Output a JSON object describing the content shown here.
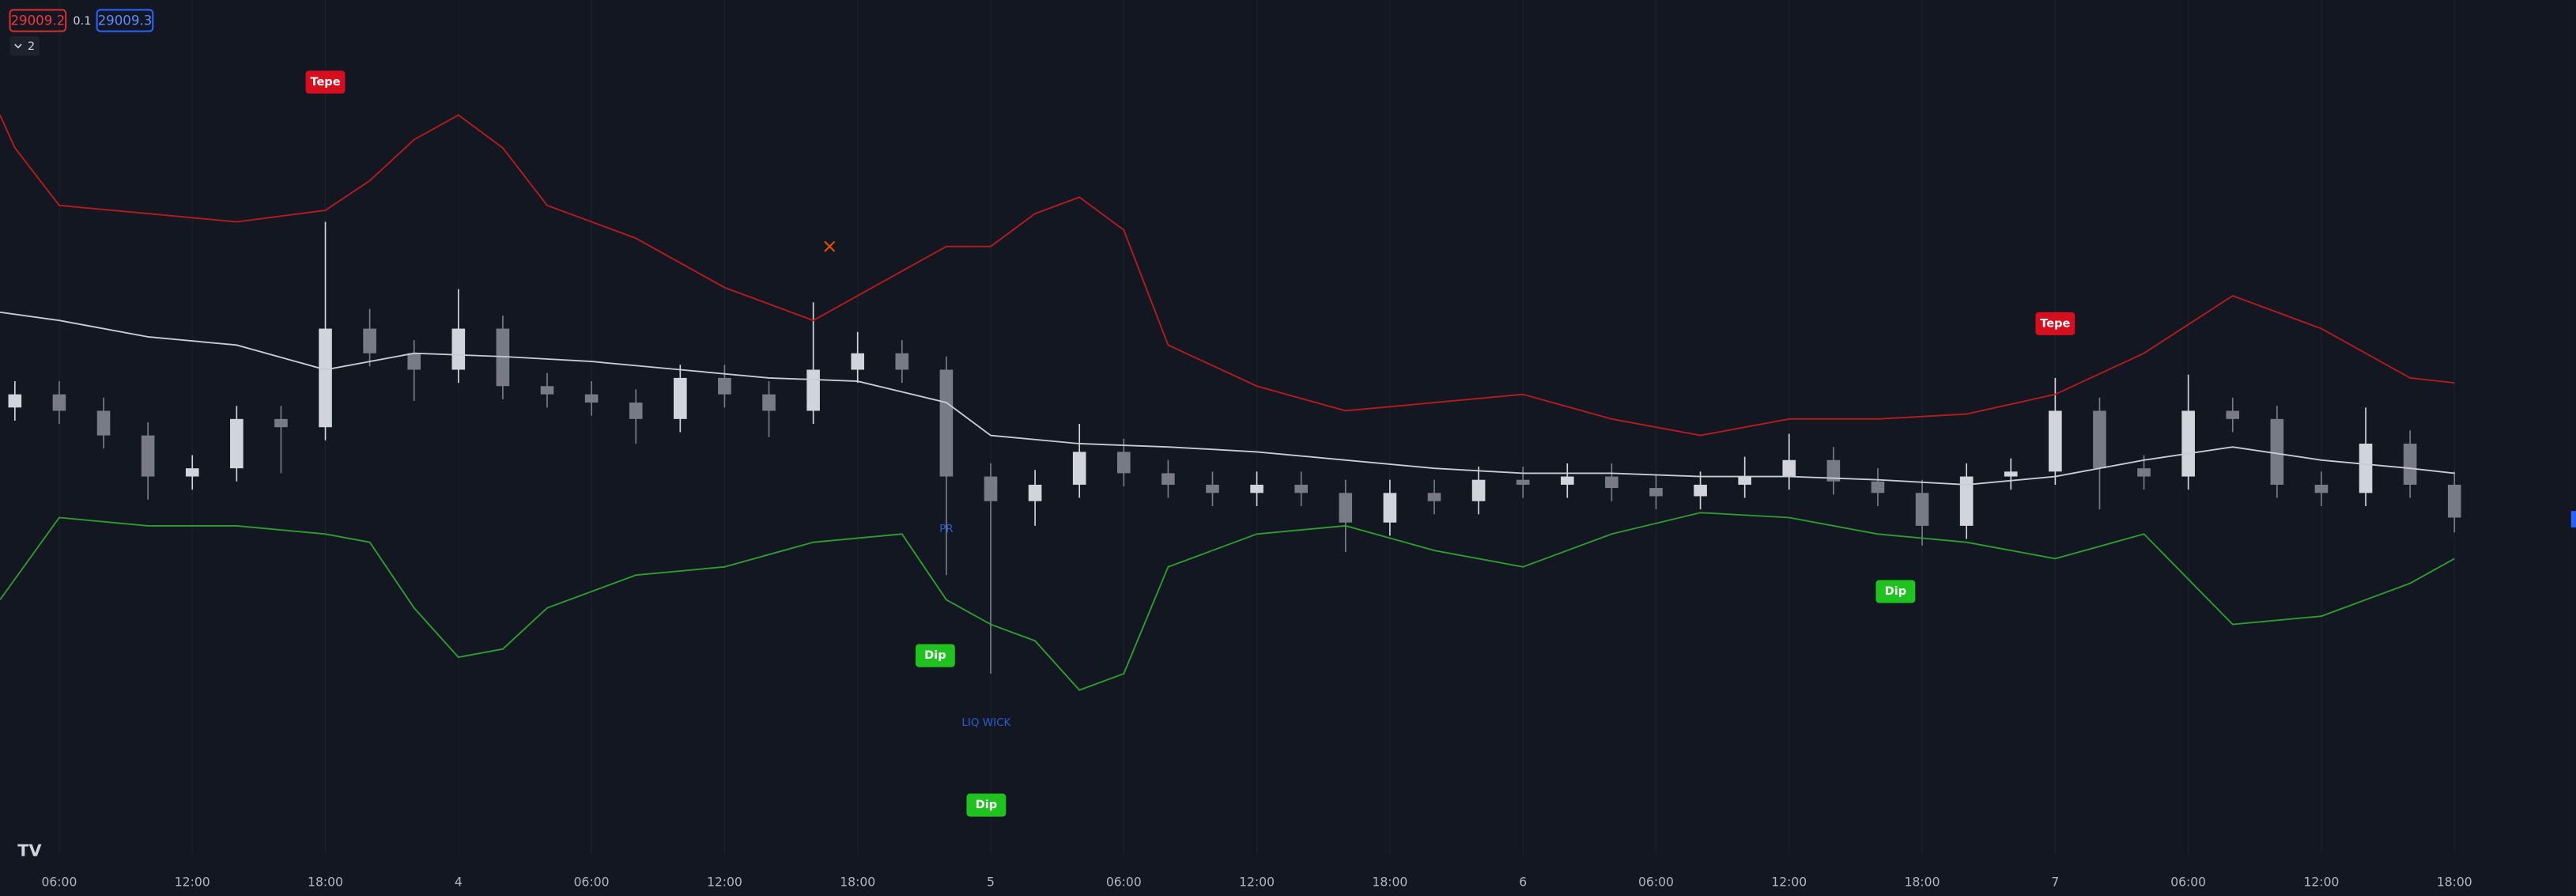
{
  "header": {
    "bid": "29009.2",
    "spread": "0.1",
    "ask": "29009.3",
    "indicator_count": "2"
  },
  "chart_data": {
    "type": "candlestick",
    "xlim": [
      3.33,
      119.48
    ],
    "ylim": [
      27980,
      30580
    ],
    "xticks": [
      {
        "value": 6,
        "label": "06:00"
      },
      {
        "value": 12,
        "label": "12:00"
      },
      {
        "value": 18,
        "label": "18:00"
      },
      {
        "value": 24,
        "label": "4"
      },
      {
        "value": 30,
        "label": "06:00"
      },
      {
        "value": 36,
        "label": "12:00"
      },
      {
        "value": 42,
        "label": "18:00"
      },
      {
        "value": 48,
        "label": "5"
      },
      {
        "value": 54,
        "label": "06:00"
      },
      {
        "value": 60,
        "label": "12:00"
      },
      {
        "value": 66,
        "label": "18:00"
      },
      {
        "value": 72,
        "label": "6"
      },
      {
        "value": 78,
        "label": "06:00"
      },
      {
        "value": 84,
        "label": "12:00"
      },
      {
        "value": 90,
        "label": "18:00"
      },
      {
        "value": 96,
        "label": "7"
      },
      {
        "value": 102,
        "label": "06:00"
      },
      {
        "value": 108,
        "label": "12:00"
      },
      {
        "value": 114,
        "label": "18:00"
      }
    ],
    "grid": true,
    "candles": {
      "up_color": "#d1d4dc",
      "down_color": "#787b86",
      "x": [
        4,
        6,
        8,
        10,
        12,
        14,
        16,
        18,
        20,
        22,
        24,
        26,
        28,
        30,
        32,
        34,
        36,
        38,
        40,
        42,
        44,
        46,
        48,
        50,
        52,
        54,
        56,
        58,
        60,
        62,
        64,
        66,
        68,
        70,
        72,
        74,
        76,
        78,
        80,
        82,
        84,
        86,
        88,
        90,
        92,
        94,
        96,
        98,
        100,
        102,
        104,
        106,
        108,
        110,
        112,
        114
      ],
      "open": [
        29340,
        29380,
        29330,
        29255,
        29130,
        29155,
        29305,
        29280,
        29580,
        29505,
        29455,
        29580,
        29405,
        29380,
        29355,
        29305,
        29430,
        29380,
        29330,
        29455,
        29505,
        29455,
        29130,
        29055,
        29105,
        29205,
        29140,
        29105,
        29080,
        29105,
        29080,
        28990,
        29080,
        29055,
        29120,
        29105,
        29130,
        29095,
        29070,
        29105,
        29130,
        29180,
        29115,
        29080,
        28980,
        29130,
        29145,
        29330,
        29155,
        29130,
        29330,
        29305,
        29105,
        29080,
        29230,
        29105
      ],
      "high": [
        29420,
        29420,
        29370,
        29295,
        29195,
        29345,
        29345,
        29905,
        29640,
        29545,
        29700,
        29620,
        29445,
        29420,
        29395,
        29470,
        29470,
        29420,
        29660,
        29570,
        29545,
        29495,
        29170,
        29150,
        29290,
        29245,
        29180,
        29145,
        29145,
        29145,
        29120,
        29120,
        29120,
        29160,
        29160,
        29170,
        29170,
        29135,
        29145,
        29190,
        29260,
        29220,
        29155,
        29120,
        29170,
        29185,
        29430,
        29370,
        29195,
        29440,
        29370,
        29345,
        29145,
        29340,
        29270,
        29145
      ],
      "low": [
        29300,
        29290,
        29215,
        29060,
        29090,
        29115,
        29140,
        29240,
        29465,
        29360,
        29415,
        29365,
        29340,
        29315,
        29230,
        29265,
        29340,
        29250,
        29290,
        29415,
        29415,
        28830,
        28530,
        28980,
        29065,
        29100,
        29065,
        29040,
        29040,
        29040,
        28900,
        28950,
        29015,
        29015,
        29065,
        29065,
        29055,
        29030,
        29030,
        29065,
        29090,
        29075,
        29040,
        28920,
        28940,
        29090,
        29105,
        29030,
        29090,
        29090,
        29265,
        29065,
        29040,
        29040,
        29065,
        28960
      ],
      "close": [
        29380,
        29330,
        29255,
        29130,
        29155,
        29305,
        29280,
        29580,
        29505,
        29455,
        29580,
        29405,
        29380,
        29355,
        29305,
        29430,
        29380,
        29330,
        29455,
        29505,
        29455,
        29130,
        29055,
        29105,
        29205,
        29140,
        29105,
        29080,
        29105,
        29080,
        28990,
        29080,
        29055,
        29120,
        29105,
        29130,
        29095,
        29070,
        29105,
        29130,
        29180,
        29115,
        29080,
        28980,
        29130,
        29145,
        29330,
        29155,
        29130,
        29330,
        29305,
        29105,
        29080,
        29230,
        29105,
        29005
      ]
    },
    "lines": [
      {
        "color": "#b71c1c",
        "x": [
          3.33,
          4,
          6,
          10,
          14,
          18,
          20,
          22,
          24,
          26,
          28,
          32,
          36,
          40,
          44,
          46,
          48,
          50,
          52,
          54,
          56,
          60,
          64,
          68,
          72,
          76,
          80,
          84,
          88,
          92,
          96,
          100,
          104,
          108,
          112,
          114
        ],
        "values": [
          30230,
          30130,
          29955,
          29930,
          29905,
          29940,
          30030,
          30155,
          30230,
          30130,
          29955,
          29855,
          29705,
          29605,
          29755,
          29830,
          29830,
          29930,
          29980,
          29880,
          29530,
          29405,
          29330,
          29355,
          29380,
          29305,
          29255,
          29305,
          29305,
          29320,
          29380,
          29505,
          29680,
          29580,
          29430,
          29415
        ]
      },
      {
        "color": "#2e9d2e",
        "x": [
          3.33,
          6,
          10,
          14,
          18,
          20,
          22,
          24,
          26,
          28,
          32,
          36,
          40,
          44,
          46,
          48,
          50,
          52,
          54,
          56,
          60,
          64,
          68,
          72,
          76,
          80,
          84,
          88,
          92,
          96,
          100,
          104,
          108,
          112,
          114
        ],
        "values": [
          28755,
          29005,
          28980,
          28980,
          28955,
          28930,
          28730,
          28580,
          28605,
          28730,
          28830,
          28855,
          28930,
          28955,
          28755,
          28680,
          28630,
          28480,
          28530,
          28855,
          28955,
          28980,
          28905,
          28855,
          28955,
          29020,
          29005,
          28955,
          28930,
          28880,
          28955,
          28680,
          28705,
          28805,
          28880
        ]
      },
      {
        "color": "#c8cbd3",
        "x": [
          3.33,
          6,
          10,
          14,
          18,
          22,
          26,
          30,
          34,
          38,
          42,
          46,
          48,
          52,
          56,
          60,
          64,
          68,
          72,
          76,
          80,
          84,
          88,
          92,
          96,
          100,
          104,
          108,
          112,
          114
        ],
        "values": [
          29630,
          29605,
          29555,
          29530,
          29455,
          29505,
          29495,
          29480,
          29455,
          29430,
          29420,
          29355,
          29255,
          29230,
          29220,
          29205,
          29180,
          29155,
          29140,
          29140,
          29130,
          29130,
          29120,
          29105,
          29130,
          29180,
          29220,
          29180,
          29155,
          29140
        ]
      }
    ],
    "annotations": [
      {
        "text": "Tepe",
        "color": "#d50f1e",
        "x": 18,
        "y": 30330
      },
      {
        "text": "Tepe",
        "color": "#d50f1e",
        "x": 96,
        "y": 29595
      },
      {
        "text": "Dip",
        "color": "#1fc21f",
        "x": 45.5,
        "y": 28585
      },
      {
        "text": "Dip",
        "color": "#1fc21f",
        "x": 47.8,
        "y": 28130
      },
      {
        "text": "Dip",
        "color": "#1fc21f",
        "x": 88.8,
        "y": 28780
      },
      {
        "text": "PR",
        "color": "#2f5bd0",
        "x": 46,
        "y": 28970
      },
      {
        "text": "LIQ WICK",
        "color": "#2f5bd0",
        "x": 47.8,
        "y": 28380
      }
    ]
  }
}
